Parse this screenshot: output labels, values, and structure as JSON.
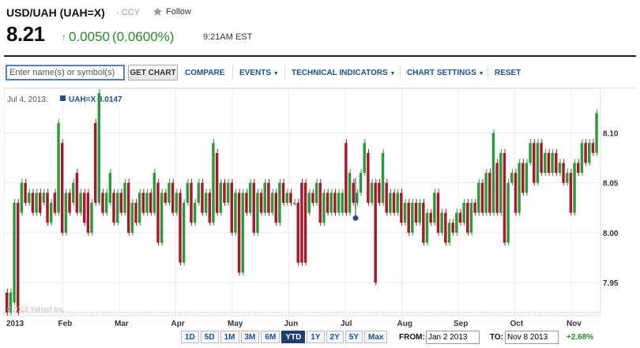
{
  "header": {
    "title": "USD/UAH (UAH=X)",
    "exchange": "- CCY",
    "follow_label": "Follow",
    "price": "8.21",
    "change": "0.0050",
    "change_pct": "(0.0600%)",
    "time": "9:21AM EST"
  },
  "toolbar": {
    "symbol_placeholder": "Enter name(s) or symbol(s)",
    "get_chart_label": "GET CHART",
    "compare_label": "COMPARE",
    "events_label": "EVENTS",
    "technical_label": "TECHNICAL INDICATORS",
    "settings_label": "CHART SETTINGS",
    "reset_label": "RESET"
  },
  "legend": {
    "date": "Jul 4, 2013:",
    "series": "UAH=X 8.0147"
  },
  "watermark": "©2013 Yahoo! Inc.",
  "ranges": [
    "1D",
    "5D",
    "1M",
    "3M",
    "6M",
    "YTD",
    "1Y",
    "2Y",
    "5Y",
    "Max"
  ],
  "active_range": "YTD",
  "date_range": {
    "from_label": "FROM:",
    "from_value": "Jan 2 2013",
    "to_label": "TO:",
    "to_value": "Nov 8 2013",
    "change_pct": "+2.68%"
  },
  "colors": {
    "up": "#2a9a3a",
    "down": "#a8182c",
    "accent": "#1f4f8c"
  },
  "chart_data": {
    "type": "candlestick",
    "ylim": [
      7.92,
      8.14
    ],
    "yticks": [
      "7.95",
      "8.00",
      "8.05",
      "8.10"
    ],
    "xticks": [
      "2013",
      "Feb",
      "Mar",
      "Apr",
      "May",
      "Jun",
      "Jul",
      "Aug",
      "Sep",
      "Oct",
      "Nov"
    ],
    "reference_line": 7.92,
    "marker": {
      "date": "Jul 4",
      "value": 8.0147
    },
    "candles": [
      [
        7.94,
        7.92
      ],
      [
        7.92,
        7.94
      ],
      [
        7.93,
        8.03
      ],
      [
        8.03,
        7.92
      ],
      [
        8.02,
        8.05
      ],
      [
        8.05,
        8.03
      ],
      [
        8.03,
        8.04
      ],
      [
        8.04,
        8.02
      ],
      [
        8.02,
        8.04
      ],
      [
        8.04,
        8.02
      ],
      [
        8.03,
        8.04
      ],
      [
        8.04,
        8.01
      ],
      [
        8.01,
        8.03
      ],
      [
        8.04,
        8.02
      ],
      [
        8.02,
        8.11
      ],
      [
        8.09,
        8.0
      ],
      [
        8.0,
        8.04
      ],
      [
        8.04,
        8.02
      ],
      [
        8.03,
        8.05
      ],
      [
        8.06,
        8.02
      ],
      [
        8.02,
        8.04
      ],
      [
        8.04,
        8.01
      ],
      [
        8.04,
        8.0
      ],
      [
        8.0,
        8.03
      ],
      [
        8.11,
        8.03
      ],
      [
        8.03,
        8.14
      ],
      [
        8.04,
        8.02
      ],
      [
        8.02,
        8.04
      ],
      [
        8.03,
        8.06
      ],
      [
        8.04,
        8.01
      ],
      [
        8.01,
        8.04
      ],
      [
        8.04,
        8.02
      ],
      [
        8.02,
        8.05
      ],
      [
        8.05,
        8.0
      ],
      [
        8.0,
        8.03
      ],
      [
        8.03,
        8.01
      ],
      [
        8.01,
        8.04
      ],
      [
        8.04,
        8.02
      ],
      [
        8.02,
        8.04
      ],
      [
        8.04,
        8.02
      ],
      [
        8.02,
        8.06
      ],
      [
        8.05,
        7.99
      ],
      [
        7.99,
        8.04
      ],
      [
        8.04,
        8.03
      ],
      [
        8.03,
        8.05
      ],
      [
        8.05,
        8.02
      ],
      [
        8.02,
        8.04
      ],
      [
        8.04,
        7.97
      ],
      [
        7.97,
        8.03
      ],
      [
        8.03,
        8.05
      ],
      [
        8.05,
        8.01
      ],
      [
        8.01,
        8.03
      ],
      [
        8.03,
        8.05
      ],
      [
        8.05,
        8.02
      ],
      [
        8.02,
        8.04
      ],
      [
        8.04,
        8.01
      ],
      [
        8.01,
        8.09
      ],
      [
        8.08,
        8.02
      ],
      [
        8.02,
        8.05
      ],
      [
        8.05,
        8.03
      ],
      [
        8.03,
        8.05
      ],
      [
        8.05,
        8.0
      ],
      [
        8.0,
        8.04
      ],
      [
        8.04,
        7.96
      ],
      [
        7.96,
        8.04
      ],
      [
        8.04,
        8.02
      ],
      [
        8.02,
        8.05
      ],
      [
        8.05,
        8.0
      ],
      [
        8.0,
        8.04
      ],
      [
        8.04,
        8.02
      ],
      [
        8.02,
        8.05
      ],
      [
        8.05,
        8.02
      ],
      [
        8.02,
        8.04
      ],
      [
        8.04,
        8.01
      ],
      [
        8.01,
        8.05
      ],
      [
        8.05,
        8.03
      ],
      [
        8.03,
        8.04
      ],
      [
        8.04,
        8.03
      ],
      [
        8.03,
        8.03
      ],
      [
        8.03,
        7.97
      ],
      [
        8.05,
        7.97
      ],
      [
        8.05,
        7.97
      ],
      [
        8.02,
        8.04
      ],
      [
        8.04,
        8.03
      ],
      [
        8.03,
        8.05
      ],
      [
        8.05,
        8.01
      ],
      [
        8.01,
        8.04
      ],
      [
        8.04,
        8.02
      ],
      [
        8.02,
        8.04
      ],
      [
        8.04,
        8.02
      ],
      [
        8.02,
        8.04
      ],
      [
        8.02,
        8.04
      ],
      [
        8.09,
        8.02
      ],
      [
        8.02,
        8.06
      ],
      [
        8.05,
        8.03
      ],
      [
        8.03,
        8.04
      ],
      [
        8.04,
        8.06
      ],
      [
        8.06,
        8.09
      ],
      [
        8.08,
        8.03
      ],
      [
        8.03,
        8.05
      ],
      [
        8.05,
        7.95
      ],
      [
        8.05,
        8.03
      ],
      [
        8.03,
        8.08
      ],
      [
        8.05,
        8.02
      ],
      [
        8.02,
        8.04
      ],
      [
        8.04,
        8.02
      ],
      [
        8.02,
        8.04
      ],
      [
        8.04,
        8.01
      ],
      [
        8.01,
        8.03
      ],
      [
        8.03,
        8.0
      ],
      [
        8.0,
        8.03
      ],
      [
        8.03,
        8.01
      ],
      [
        8.01,
        8.03
      ],
      [
        8.03,
        7.99
      ],
      [
        7.99,
        8.02
      ],
      [
        8.02,
        8.01
      ],
      [
        8.01,
        8.04
      ],
      [
        8.04,
        8.0
      ],
      [
        8.0,
        8.02
      ],
      [
        8.02,
        7.99
      ],
      [
        7.99,
        8.01
      ],
      [
        8.01,
        8.0
      ],
      [
        8.0,
        8.02
      ],
      [
        8.02,
        8.01
      ],
      [
        8.01,
        8.03
      ],
      [
        8.03,
        8.0
      ],
      [
        8.0,
        8.03
      ],
      [
        8.03,
        8.02
      ],
      [
        8.02,
        8.05
      ],
      [
        8.05,
        8.02
      ],
      [
        8.02,
        8.06
      ],
      [
        8.06,
        8.02
      ],
      [
        8.02,
        8.1
      ],
      [
        8.07,
        8.02
      ],
      [
        8.02,
        8.08
      ],
      [
        8.08,
        7.99
      ],
      [
        7.99,
        8.05
      ],
      [
        8.05,
        8.06
      ],
      [
        8.06,
        8.02
      ],
      [
        8.02,
        8.07
      ],
      [
        8.07,
        8.04
      ],
      [
        8.04,
        8.07
      ],
      [
        8.07,
        8.09
      ],
      [
        8.09,
        8.05
      ],
      [
        8.05,
        8.09
      ],
      [
        8.09,
        8.06
      ],
      [
        8.06,
        8.08
      ],
      [
        8.08,
        8.06
      ],
      [
        8.06,
        8.08
      ],
      [
        8.08,
        8.06
      ],
      [
        8.06,
        8.07
      ],
      [
        8.07,
        8.05
      ],
      [
        8.05,
        8.06
      ],
      [
        8.06,
        8.02
      ],
      [
        8.02,
        8.07
      ],
      [
        8.07,
        8.06
      ],
      [
        8.06,
        8.09
      ],
      [
        8.09,
        8.07
      ],
      [
        8.07,
        8.09
      ],
      [
        8.09,
        8.08
      ],
      [
        8.08,
        8.12
      ]
    ]
  }
}
